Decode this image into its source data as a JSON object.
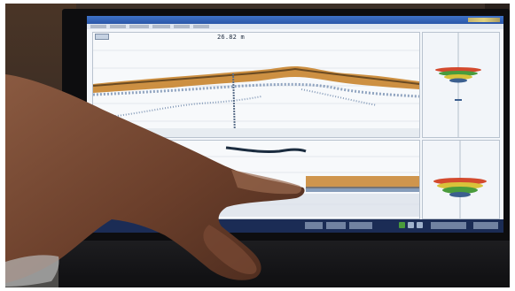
{
  "photo": {
    "subject": "hand-pointing-at-laptop-screen",
    "screen_app": {
      "range_readout": "26.82 m",
      "colors": {
        "bottom_echo_warm": "#c8842e",
        "bottom_echo_dark": "#6b4b23",
        "scatter_blue": "#3c5f8f",
        "status_bar": "#1b2c55",
        "legend_red": "#d34a2e",
        "legend_green": "#4a9b3c",
        "legend_yellow": "#d9c23a"
      },
      "icons": [
        "window-title-icon",
        "echogram-top",
        "echogram-bottom",
        "depth-histogram"
      ]
    }
  }
}
